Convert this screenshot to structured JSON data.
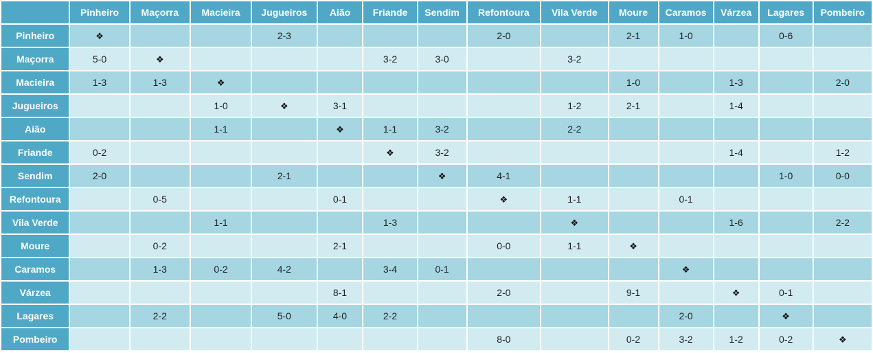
{
  "teams": [
    "Pinheiro",
    "Maçorra",
    "Macieira",
    "Jugueiros",
    "Aião",
    "Friande",
    "Sendim",
    "Refontoura",
    "Vila Verde",
    "Moure",
    "Caramos",
    "Várzea",
    "Lagares",
    "Pombeiro"
  ],
  "self_symbol": "❖",
  "rows": [
    {
      "team": "Pinheiro",
      "cells": [
        "❖",
        "",
        "",
        "2-3",
        "",
        "",
        "",
        "2-0",
        "",
        "2-1",
        "1-0",
        "",
        "0-6",
        ""
      ]
    },
    {
      "team": "Maçorra",
      "cells": [
        "5-0",
        "❖",
        "",
        "",
        "",
        "3-2",
        "3-0",
        "",
        "3-2",
        "",
        "",
        "",
        "",
        ""
      ]
    },
    {
      "team": "Macieira",
      "cells": [
        "1-3",
        "1-3",
        "❖",
        "",
        "",
        "",
        "",
        "",
        "",
        "1-0",
        "",
        "1-3",
        "",
        "2-0"
      ]
    },
    {
      "team": "Jugueiros",
      "cells": [
        "",
        "",
        "1-0",
        "❖",
        "3-1",
        "",
        "",
        "",
        "1-2",
        "2-1",
        "",
        "1-4",
        "",
        ""
      ]
    },
    {
      "team": "Aião",
      "cells": [
        "",
        "",
        "1-1",
        "",
        "❖",
        "1-1",
        "3-2",
        "",
        "2-2",
        "",
        "",
        "",
        "",
        ""
      ]
    },
    {
      "team": "Friande",
      "cells": [
        "0-2",
        "",
        "",
        "",
        "",
        "❖",
        "3-2",
        "",
        "",
        "",
        "",
        "1-4",
        "",
        "1-2"
      ]
    },
    {
      "team": "Sendim",
      "cells": [
        "2-0",
        "",
        "",
        "2-1",
        "",
        "",
        "❖",
        "4-1",
        "",
        "",
        "",
        "",
        "1-0",
        "0-0"
      ]
    },
    {
      "team": "Refontoura",
      "cells": [
        "",
        "0-5",
        "",
        "",
        "0-1",
        "",
        "",
        "❖",
        "1-1",
        "",
        "0-1",
        "",
        "",
        ""
      ]
    },
    {
      "team": "Vila Verde",
      "cells": [
        "",
        "",
        "1-1",
        "",
        "",
        "1-3",
        "",
        "",
        "❖",
        "",
        "",
        "1-6",
        "",
        "2-2"
      ]
    },
    {
      "team": "Moure",
      "cells": [
        "",
        "0-2",
        "",
        "",
        "2-1",
        "",
        "",
        "0-0",
        "1-1",
        "❖",
        "",
        "",
        "",
        ""
      ]
    },
    {
      "team": "Caramos",
      "cells": [
        "",
        "1-3",
        "0-2",
        "4-2",
        "",
        "3-4",
        "0-1",
        "",
        "",
        "",
        "❖",
        "",
        "",
        ""
      ]
    },
    {
      "team": "Várzea",
      "cells": [
        "",
        "",
        "",
        "",
        "8-1",
        "",
        "",
        "2-0",
        "",
        "9-1",
        "",
        "❖",
        "0-1",
        ""
      ]
    },
    {
      "team": "Lagares",
      "cells": [
        "",
        "2-2",
        "",
        "5-0",
        "4-0",
        "2-2",
        "",
        "",
        "",
        "",
        "2-0",
        "",
        "❖",
        ""
      ]
    },
    {
      "team": "Pombeiro",
      "cells": [
        "",
        "",
        "",
        "",
        "",
        "",
        "",
        "8-0",
        "",
        "0-2",
        "3-2",
        "1-2",
        "0-2",
        "❖"
      ]
    }
  ]
}
